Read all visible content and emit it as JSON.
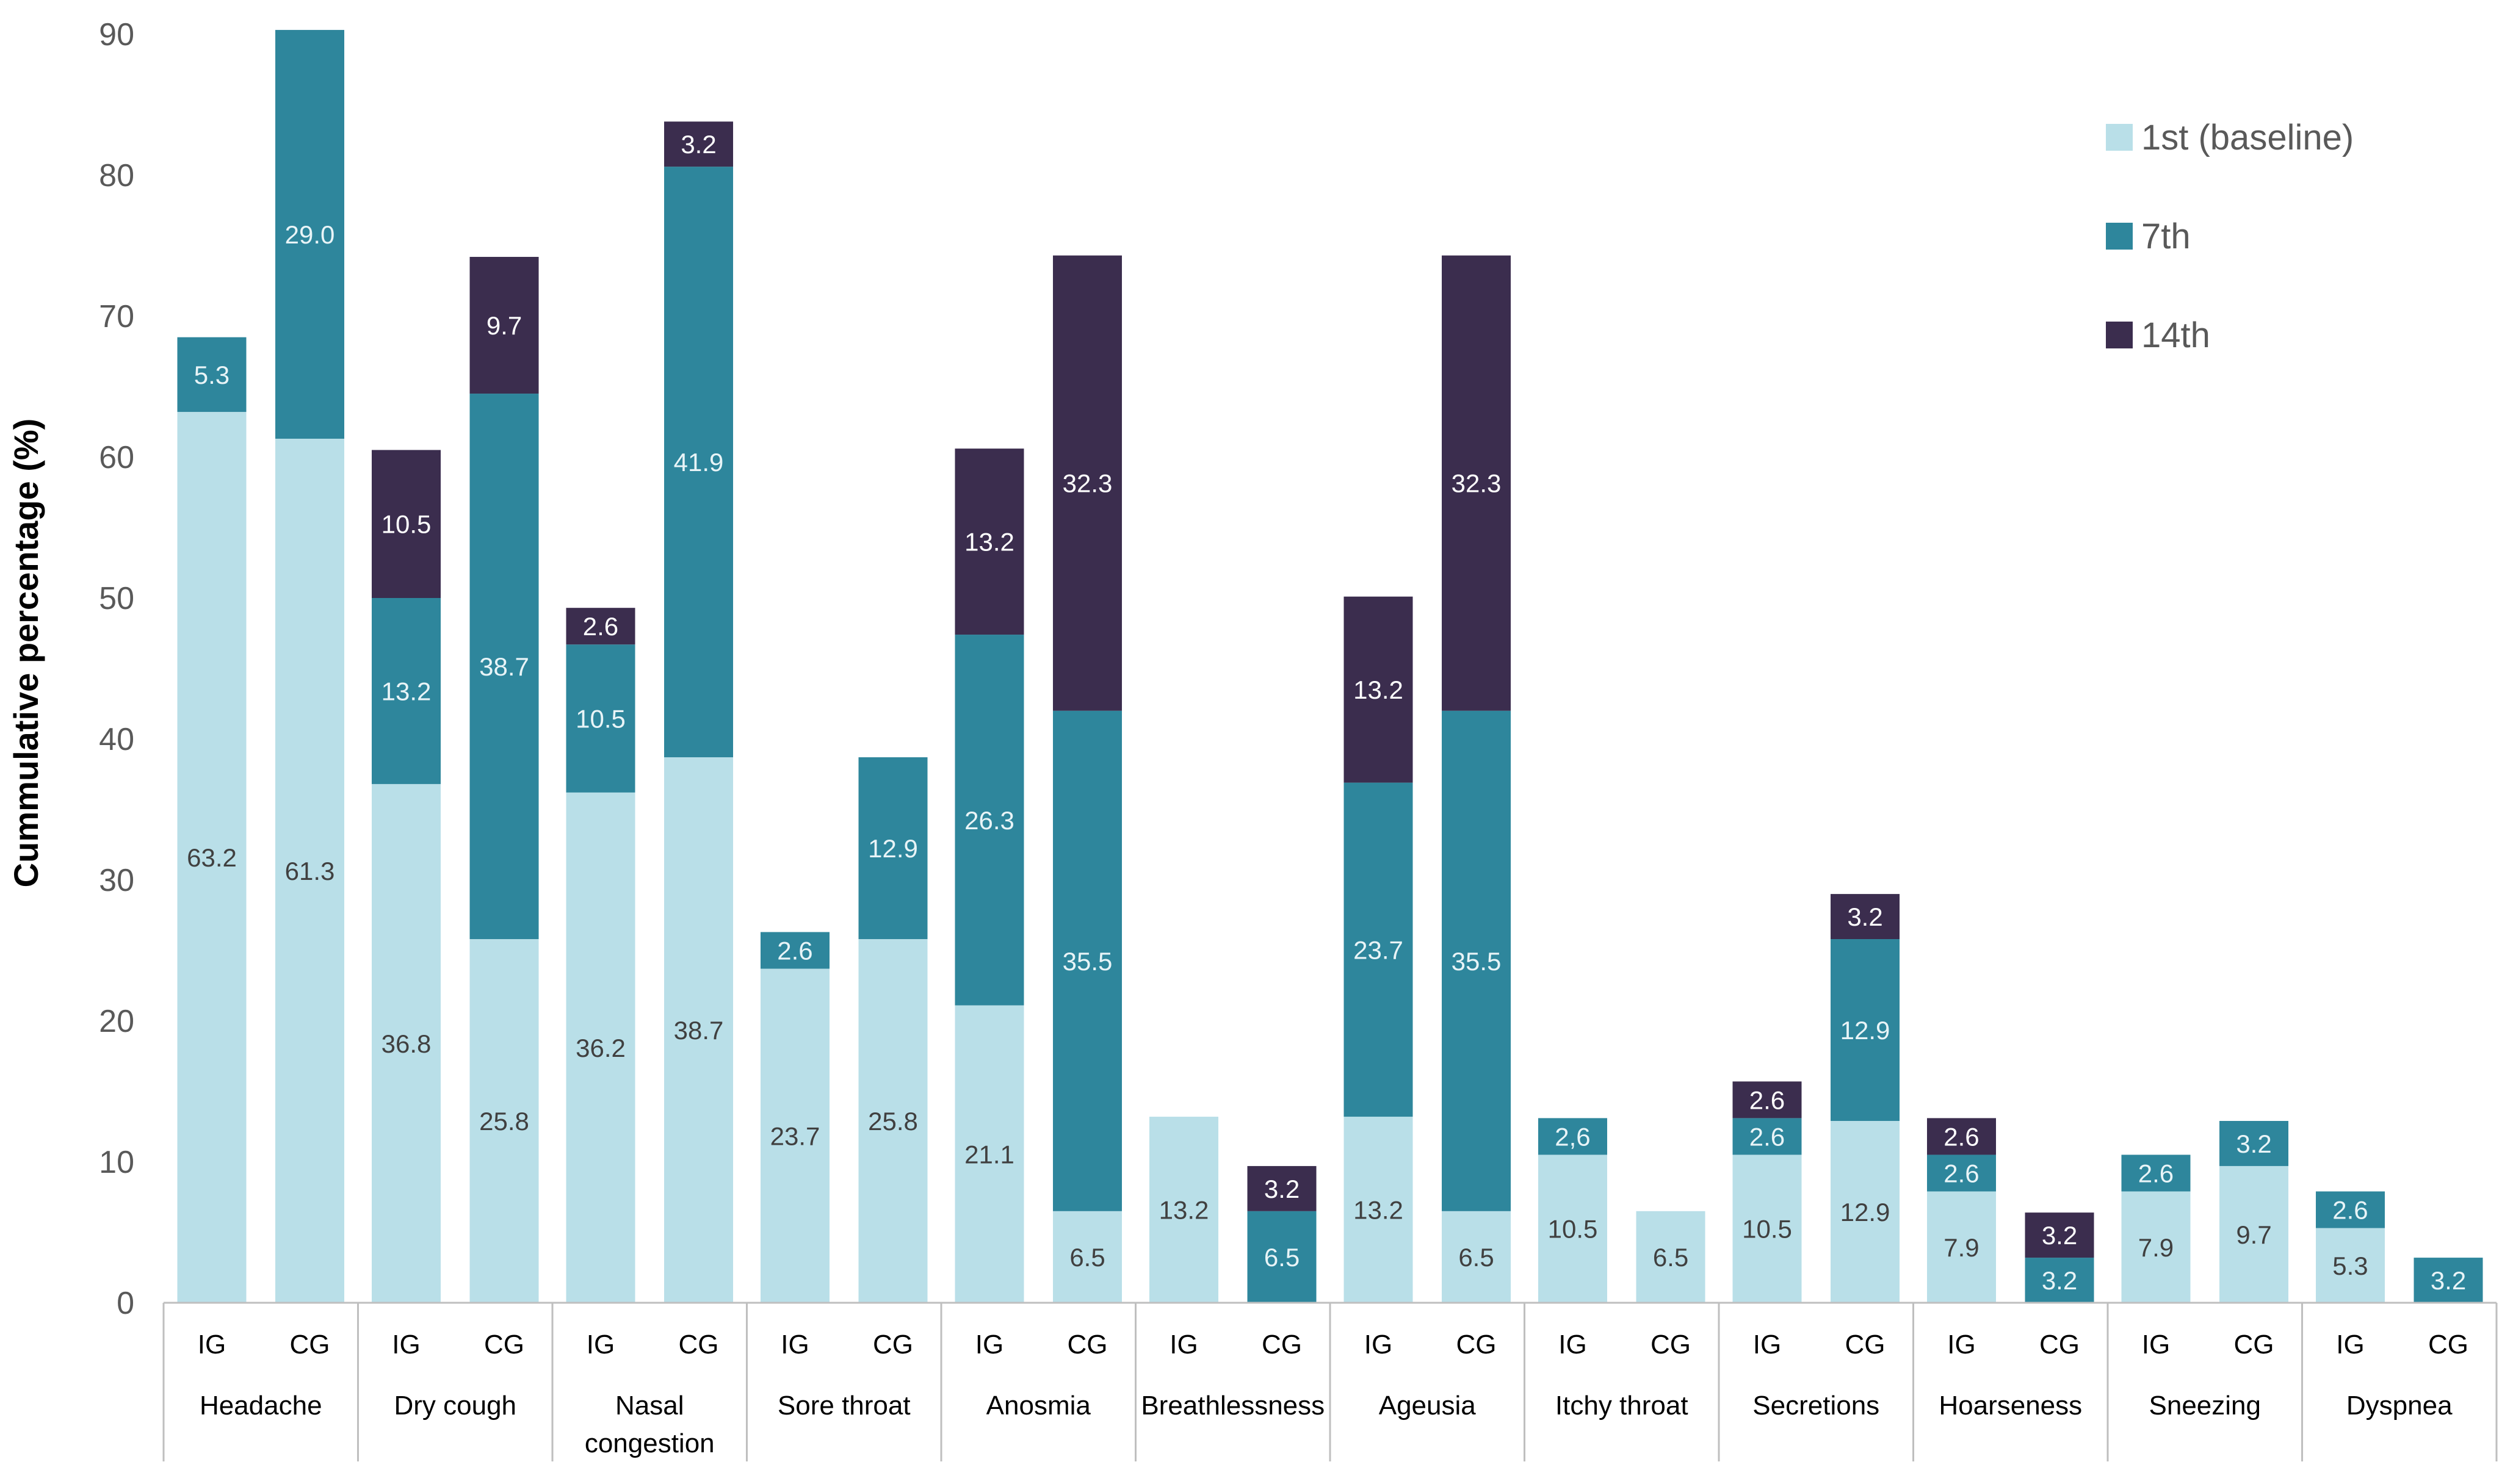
{
  "chart_data": {
    "type": "bar",
    "stacked": true,
    "title": "",
    "xlabel": "",
    "ylabel": "Cummulative percentage (%)",
    "ylim": [
      0,
      90
    ],
    "yticks": [
      0,
      10,
      20,
      30,
      40,
      50,
      60,
      70,
      80,
      90
    ],
    "grid": false,
    "legend_position": "top-right",
    "categories": [
      "Headache",
      "Dry cough",
      "Nasal congestion",
      "Sore throat",
      "Anosmia",
      "Breathlessness",
      "Ageusia",
      "Itchy throat",
      "Secretions",
      "Hoarseness",
      "Sneezing",
      "Dyspnea"
    ],
    "category_lines": [
      [
        "Headache"
      ],
      [
        "Dry cough"
      ],
      [
        "Nasal",
        "congestion"
      ],
      [
        "Sore throat"
      ],
      [
        "Anosmia"
      ],
      [
        "Breathlessness"
      ],
      [
        "Ageusia"
      ],
      [
        "Itchy throat"
      ],
      [
        "Secretions"
      ],
      [
        "Hoarseness"
      ],
      [
        "Sneezing"
      ],
      [
        "Dyspnea"
      ]
    ],
    "groups": [
      "IG",
      "CG"
    ],
    "series": [
      {
        "name": "1st (baseline)",
        "color": "#b9dfe8",
        "label_color": "#404040",
        "values": [
          [
            63.2,
            61.3
          ],
          [
            36.8,
            25.8
          ],
          [
            36.2,
            38.7
          ],
          [
            23.7,
            25.8
          ],
          [
            21.1,
            6.5
          ],
          [
            13.2,
            0
          ],
          [
            13.2,
            6.5
          ],
          [
            10.5,
            6.5
          ],
          [
            10.5,
            12.9
          ],
          [
            7.9,
            0
          ],
          [
            7.9,
            9.7
          ],
          [
            5.3,
            0
          ]
        ],
        "labels": [
          [
            "63.2",
            "61.3"
          ],
          [
            "36.8",
            "25.8"
          ],
          [
            "36.2",
            "38.7"
          ],
          [
            "23.7",
            "25.8"
          ],
          [
            "21.1",
            "6.5"
          ],
          [
            "13.2",
            ""
          ],
          [
            "13.2",
            "6.5"
          ],
          [
            "10.5",
            "6.5"
          ],
          [
            "10.5",
            "12.9"
          ],
          [
            "7.9",
            ""
          ],
          [
            "7.9",
            "9.7"
          ],
          [
            "5.3",
            ""
          ]
        ]
      },
      {
        "name": "7th",
        "color": "#2e869c",
        "label_color": "#e8f4f7",
        "values": [
          [
            5.3,
            29.0
          ],
          [
            13.2,
            38.7
          ],
          [
            10.5,
            41.9
          ],
          [
            2.6,
            12.9
          ],
          [
            26.3,
            35.5
          ],
          [
            0,
            6.5
          ],
          [
            23.7,
            35.5
          ],
          [
            2.6,
            0
          ],
          [
            2.6,
            12.9
          ],
          [
            2.6,
            3.2
          ],
          [
            2.6,
            3.2
          ],
          [
            2.6,
            3.2
          ]
        ],
        "labels": [
          [
            "5.3",
            "29.0"
          ],
          [
            "13.2",
            "38.7"
          ],
          [
            "10.5",
            "41.9"
          ],
          [
            "2.6",
            "12.9"
          ],
          [
            "26.3",
            "35.5"
          ],
          [
            "",
            "6.5"
          ],
          [
            "23.7",
            "35.5"
          ],
          [
            "2,6",
            ""
          ],
          [
            "2.6",
            "12.9"
          ],
          [
            "2.6",
            "3.2"
          ],
          [
            "2.6",
            "3.2"
          ],
          [
            "2.6",
            "3.2"
          ]
        ]
      },
      {
        "name": "14th",
        "color": "#3b2d4e",
        "label_color": "#ffffff",
        "values": [
          [
            0,
            0
          ],
          [
            10.5,
            9.7
          ],
          [
            2.6,
            3.2
          ],
          [
            0,
            0
          ],
          [
            13.2,
            32.3
          ],
          [
            0,
            3.2
          ],
          [
            13.2,
            32.3
          ],
          [
            0,
            0
          ],
          [
            2.6,
            3.2
          ],
          [
            2.6,
            3.2
          ],
          [
            0,
            0
          ],
          [
            0,
            0
          ]
        ],
        "labels": [
          [
            "",
            ""
          ],
          [
            "10.5",
            "9.7"
          ],
          [
            "2.6",
            "3.2"
          ],
          [
            "",
            ""
          ],
          [
            "13.2",
            "32.3"
          ],
          [
            "",
            "3.2"
          ],
          [
            "13.2",
            "32.3"
          ],
          [
            "",
            ""
          ],
          [
            "2.6",
            "3.2"
          ],
          [
            "2.6",
            "3.2"
          ],
          [
            "",
            ""
          ],
          [
            "",
            ""
          ]
        ]
      }
    ]
  }
}
